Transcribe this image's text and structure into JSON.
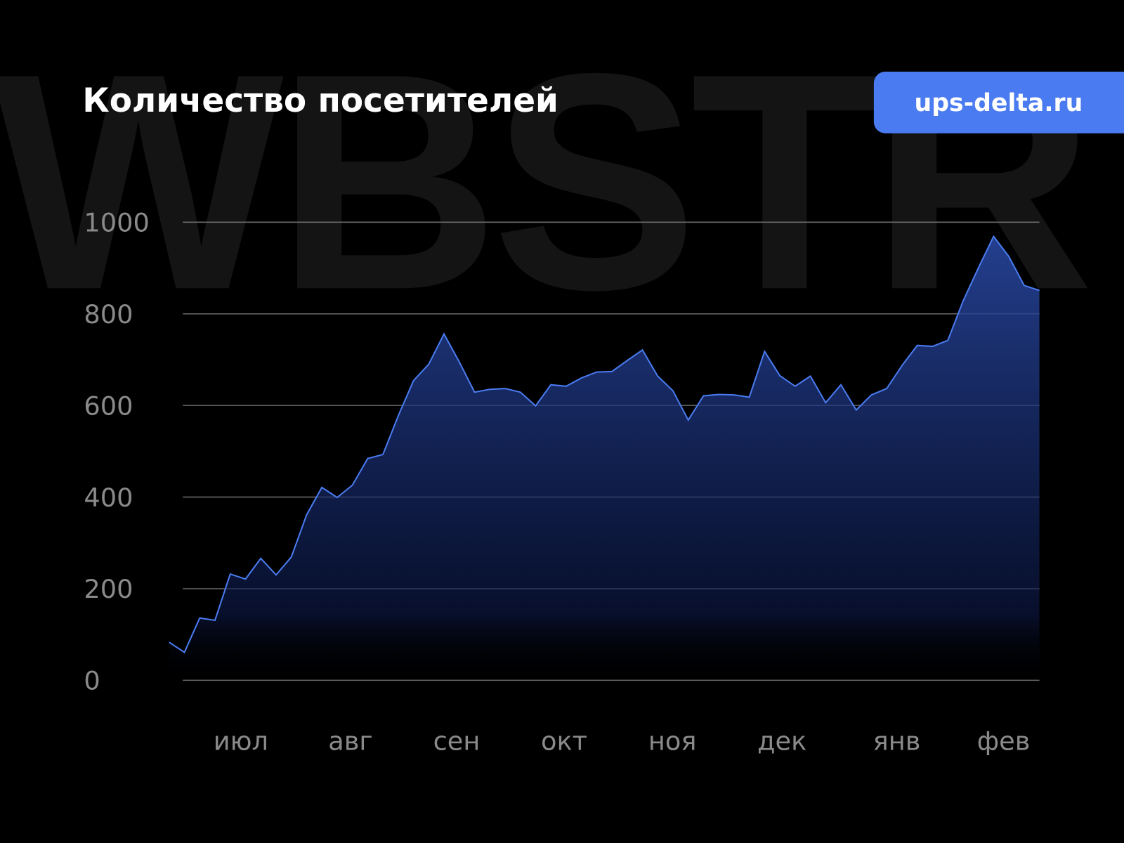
{
  "watermark": "WBSTR",
  "badge": {
    "label": "ups-delta.ru",
    "color": "#4a7bf0"
  },
  "chart_data": {
    "type": "area",
    "title": "Количество посетителей",
    "xlabel": "",
    "ylabel": "",
    "ylim": [
      0,
      1000
    ],
    "yticks": [
      0,
      200,
      400,
      600,
      800,
      1000
    ],
    "x_tick_labels": [
      "июл",
      "авг",
      "сен",
      "окт",
      "ноя",
      "дек",
      "янв",
      "фев"
    ],
    "grid": true,
    "line_color": "#4a7bf0",
    "fill_color": "#1e3a8a",
    "values": [
      83,
      61,
      136,
      131,
      232,
      221,
      266,
      230,
      269,
      361,
      421,
      399,
      426,
      484,
      493,
      577,
      654,
      690,
      756,
      695,
      629,
      635,
      637,
      629,
      599,
      645,
      642,
      660,
      673,
      674,
      698,
      721,
      664,
      632,
      568,
      621,
      624,
      623,
      618,
      718,
      665,
      642,
      664,
      606,
      645,
      590,
      623,
      637,
      687,
      731,
      729,
      742,
      828,
      900,
      969,
      925,
      862,
      851
    ]
  }
}
